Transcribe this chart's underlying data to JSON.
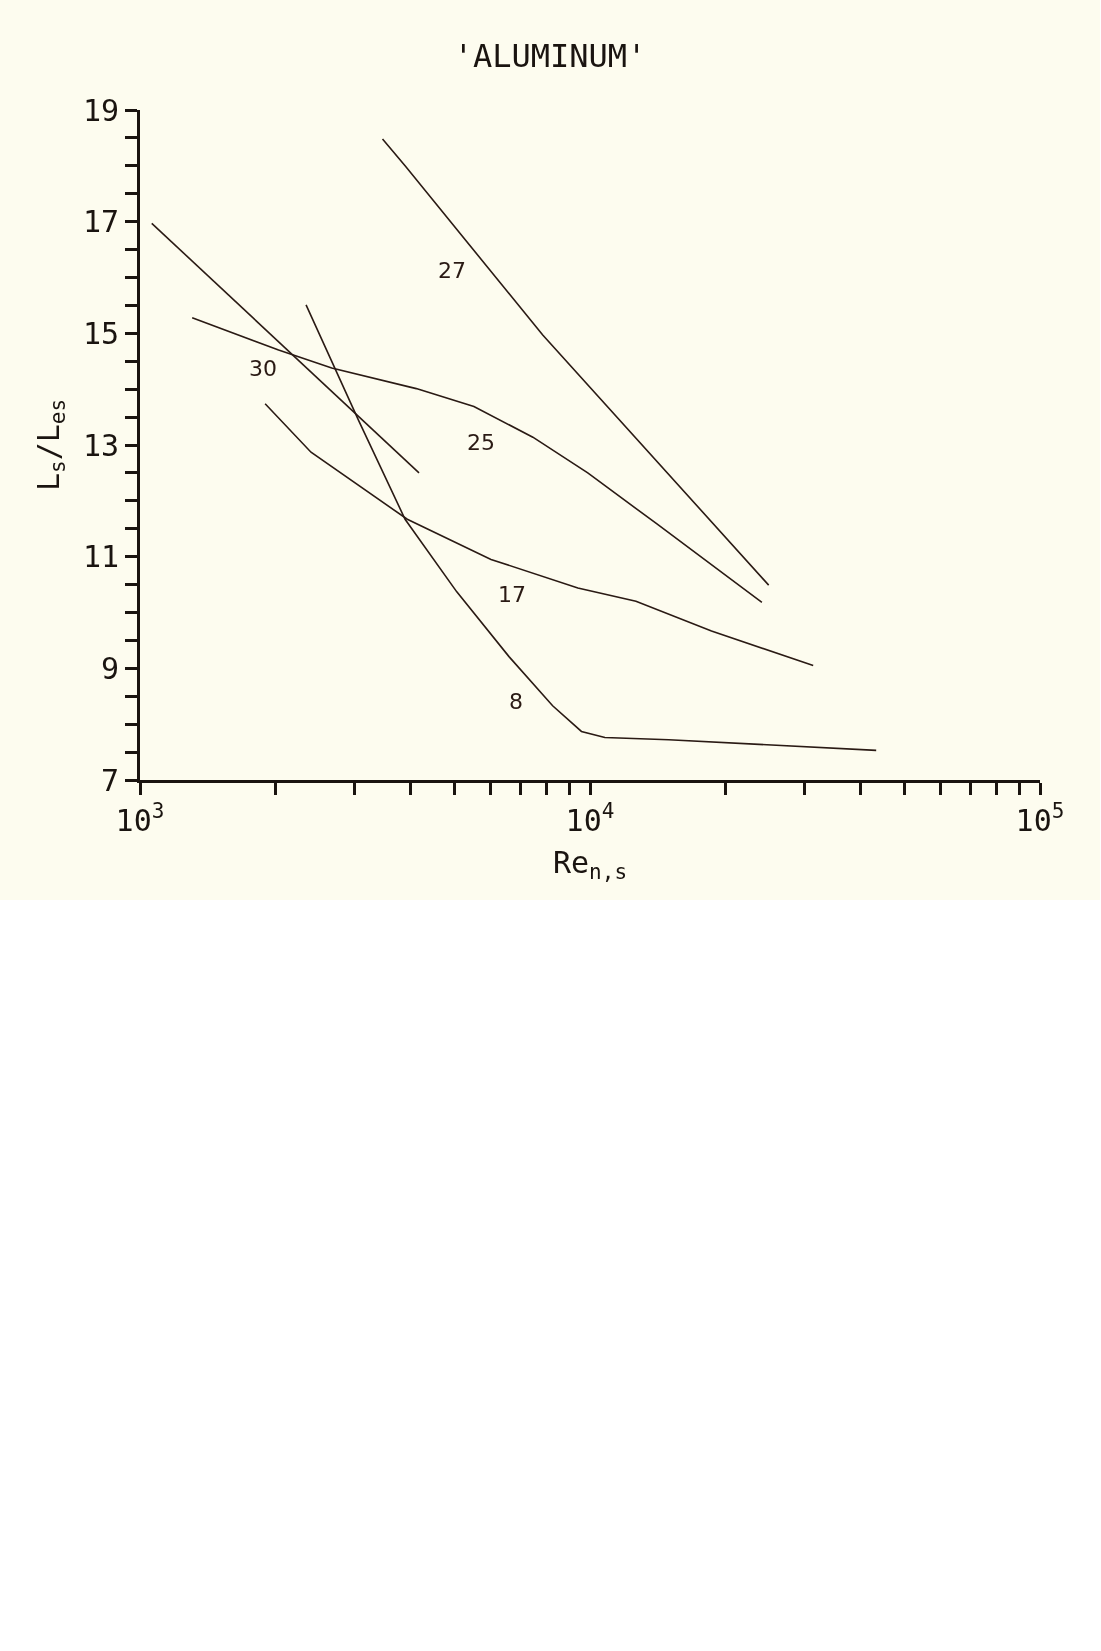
{
  "chart_data": {
    "type": "line",
    "title": "'ALUMINUM'",
    "xlabel": "Re$_{n,s}$",
    "ylabel": "L$_{s}$/L$_{es}$",
    "log": "x",
    "grid": false,
    "legend": false,
    "marker": "none",
    "line_style": "solid",
    "xlim": [
      1000,
      100000
    ],
    "xticks": [
      {
        "value": 1000,
        "label": "10$^{3}$"
      },
      {
        "value": 2000,
        "label": null
      },
      {
        "value": 3000,
        "label": null
      },
      {
        "value": 4000,
        "label": null
      },
      {
        "value": 5000,
        "label": null
      },
      {
        "value": 6000,
        "label": null
      },
      {
        "value": 7000,
        "label": null
      },
      {
        "value": 8000,
        "label": null
      },
      {
        "value": 9000,
        "label": null
      },
      {
        "value": 10000,
        "label": "10$^{4}$"
      },
      {
        "value": 20000,
        "label": null
      },
      {
        "value": 30000,
        "label": null
      },
      {
        "value": 40000,
        "label": null
      },
      {
        "value": 50000,
        "label": null
      },
      {
        "value": 60000,
        "label": null
      },
      {
        "value": 70000,
        "label": null
      },
      {
        "value": 80000,
        "label": null
      },
      {
        "value": 90000,
        "label": null
      },
      {
        "value": 100000,
        "label": "10$^{5}$"
      }
    ],
    "ylim": [
      7,
      19
    ],
    "yticks": [
      7,
      {
        "value": 7.5,
        "label": null
      },
      {
        "value": 8,
        "label": null
      },
      {
        "value": 8.5,
        "label": null
      },
      9,
      {
        "value": 9.5,
        "label": null
      },
      {
        "value": 10,
        "label": null
      },
      {
        "value": 10.5,
        "label": null
      },
      11,
      {
        "value": 11.5,
        "label": null
      },
      {
        "value": 12,
        "label": null
      },
      {
        "value": 12.5,
        "label": null
      },
      13,
      {
        "value": 13.5,
        "label": null
      },
      {
        "value": 14,
        "label": null
      },
      {
        "value": 14.5,
        "label": null
      },
      15,
      {
        "value": 15.5,
        "label": null
      },
      {
        "value": 16,
        "label": null
      },
      {
        "value": 16.5,
        "label": null
      },
      17,
      {
        "value": 17.5,
        "label": null
      },
      {
        "value": 18,
        "label": null
      },
      {
        "value": 18.5,
        "label": null
      },
      19
    ],
    "series": [
      {
        "name": "30",
        "color": "#2a1a14",
        "x": [
          1062,
          4169
        ],
        "values": [
          16.97,
          12.5
        ]
      },
      {
        "name": "27",
        "color": "#2a1a14",
        "x": [
          3459,
          3882,
          7852,
          24950
        ],
        "values": [
          18.48,
          18.0,
          14.97,
          10.49
        ]
      },
      {
        "name": "25",
        "color": "#2a1a14",
        "x": [
          1306,
          2032,
          2667,
          4111,
          5521,
          7464,
          9886,
          14060,
          24100
        ],
        "values": [
          15.28,
          14.7,
          14.38,
          14.01,
          13.69,
          13.14,
          12.5,
          11.59,
          10.18
        ]
      },
      {
        "name": "17",
        "color": "#2a1a14",
        "x": [
          1897,
          2399,
          3926,
          6026,
          9397,
          12650,
          18620,
          31330
        ],
        "values": [
          13.74,
          12.87,
          11.67,
          10.95,
          10.44,
          10.2,
          9.67,
          9.05
        ]
      },
      {
        "name": "8",
        "color": "#2a1a14",
        "x": [
          2339,
          3069,
          3882,
          5058,
          6607,
          8260,
          9572,
          10790,
          14960,
          43250
        ],
        "values": [
          15.51,
          13.42,
          11.67,
          10.37,
          9.21,
          8.33,
          7.87,
          7.76,
          7.72,
          7.53
        ]
      }
    ]
  }
}
